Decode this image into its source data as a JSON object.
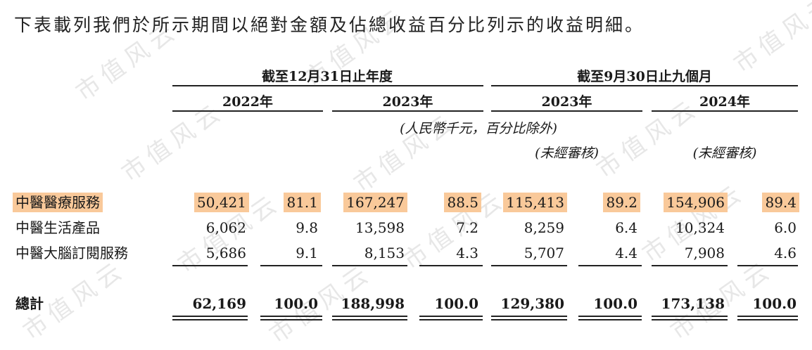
{
  "intro": "下表載列我們於所示期間以絕對金額及佔總收益百分比列示的收益明細。",
  "watermark": "市值风云",
  "header": {
    "group1": "截至12月31日止年度",
    "group2": "截至9月30日止九個月",
    "years": [
      "2022年",
      "2023年",
      "2023年",
      "2024年"
    ],
    "unit_note": "(人民幣千元，百分比除外)",
    "unaudited_1": "(未經審核)",
    "unaudited_2": "(未經審核)"
  },
  "rows": [
    {
      "label": "中醫醫療服務",
      "highlight": true,
      "values": [
        "50,421",
        "81.1",
        "167,247",
        "88.5",
        "115,413",
        "89.2",
        "154,906",
        "89.4"
      ]
    },
    {
      "label": "中醫生活產品",
      "highlight": false,
      "values": [
        "6,062",
        "9.8",
        "13,598",
        "7.2",
        "8,259",
        "6.4",
        "10,324",
        "6.0"
      ]
    },
    {
      "label": "中醫大腦訂閱服務",
      "highlight": false,
      "values": [
        "5,686",
        "9.1",
        "8,153",
        "4.3",
        "5,707",
        "4.4",
        "7,908",
        "4.6"
      ]
    }
  ],
  "total": {
    "label": "總計",
    "values": [
      "62,169",
      "100.0",
      "188,998",
      "100.0",
      "129,380",
      "100.0",
      "173,138",
      "100.0"
    ]
  },
  "colors": {
    "highlight": "#f9c99a",
    "text": "#1a1a1a"
  }
}
